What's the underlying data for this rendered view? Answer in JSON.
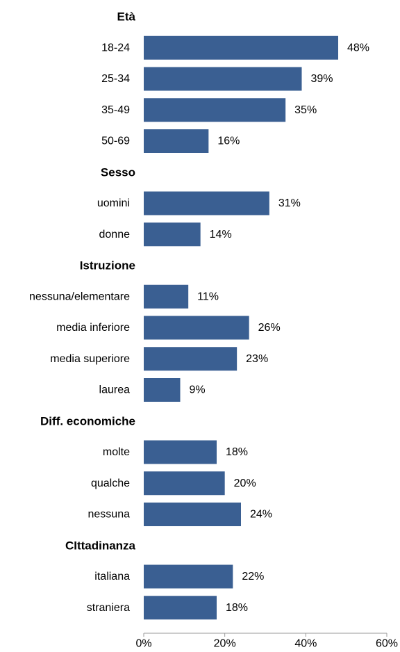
{
  "chart_data": {
    "type": "bar",
    "orientation": "horizontal",
    "title": "",
    "xlabel": "",
    "ylabel": "",
    "xlim": [
      0,
      60
    ],
    "grid": false,
    "bar_color": "#3A5F92",
    "axis_color": "#9A9A9A",
    "x_ticks": [
      "0%",
      "20%",
      "40%",
      "60%"
    ],
    "groups": [
      {
        "title": "Età",
        "items": [
          {
            "label": "18-24",
            "value": 48,
            "value_label": "48%"
          },
          {
            "label": "25-34",
            "value": 39,
            "value_label": "39%"
          },
          {
            "label": "35-49",
            "value": 35,
            "value_label": "35%"
          },
          {
            "label": "50-69",
            "value": 16,
            "value_label": "16%"
          }
        ]
      },
      {
        "title": "Sesso",
        "items": [
          {
            "label": "uomini",
            "value": 31,
            "value_label": "31%"
          },
          {
            "label": "donne",
            "value": 14,
            "value_label": "14%"
          }
        ]
      },
      {
        "title": "Istruzione",
        "items": [
          {
            "label": "nessuna/elementare",
            "value": 11,
            "value_label": "11%"
          },
          {
            "label": "media inferiore",
            "value": 26,
            "value_label": "26%"
          },
          {
            "label": "media superiore",
            "value": 23,
            "value_label": "23%"
          },
          {
            "label": "laurea",
            "value": 9,
            "value_label": "9%"
          }
        ]
      },
      {
        "title": "Diff. economiche",
        "items": [
          {
            "label": "molte",
            "value": 18,
            "value_label": "18%"
          },
          {
            "label": "qualche",
            "value": 20,
            "value_label": "20%"
          },
          {
            "label": "nessuna",
            "value": 24,
            "value_label": "24%"
          }
        ]
      },
      {
        "title": "CIttadinanza",
        "items": [
          {
            "label": "italiana",
            "value": 22,
            "value_label": "22%"
          },
          {
            "label": "straniera",
            "value": 18,
            "value_label": "18%"
          }
        ]
      }
    ]
  }
}
